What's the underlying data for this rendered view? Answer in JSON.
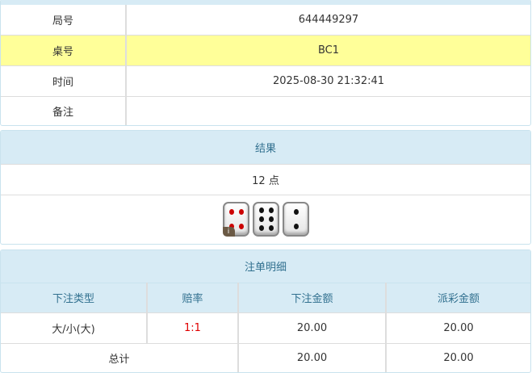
{
  "info": {
    "rows": [
      {
        "label": "局号",
        "value": "644449297"
      },
      {
        "label": "桌号",
        "value": "BC1"
      },
      {
        "label": "时间",
        "value": "2025-08-30 21:32:41"
      },
      {
        "label": "备注",
        "value": ""
      }
    ]
  },
  "result": {
    "title": "结果",
    "points": "12 点",
    "dice": [
      4,
      6,
      2
    ],
    "badge": "i"
  },
  "bets": {
    "title": "注单明细",
    "headers": [
      "下注类型",
      "赔率",
      "下注金额",
      "派彩金额"
    ],
    "rows": [
      {
        "type": "大/小(大)",
        "odds": "1:1",
        "amount": "20.00",
        "payout": "20.00"
      }
    ],
    "total": {
      "label": "总计",
      "amount": "20.00",
      "payout": "20.00"
    },
    "odds_color": "#e00000",
    "highlight_color": "#ffff99",
    "header_bg": "#d7ebf5"
  }
}
